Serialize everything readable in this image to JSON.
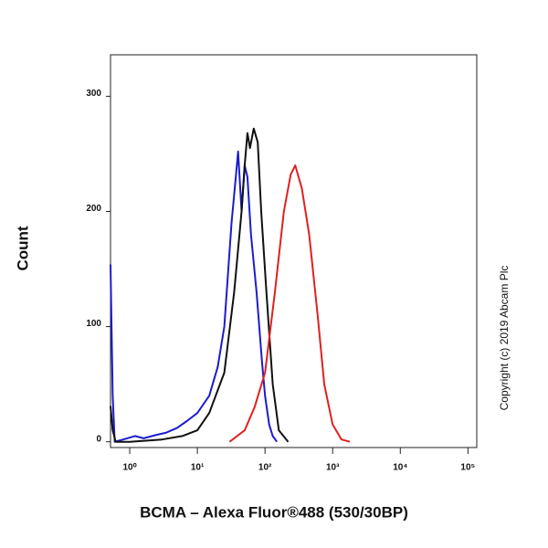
{
  "chart_data": {
    "type": "line",
    "x_label": "BCMA – Alexa Fluor®488 (530/30BP)",
    "y_label": "Count",
    "copyright": "Copyright (c) 2019 Abcam Plc",
    "xscale": "log",
    "xlim": [
      0.52,
      135000
    ],
    "ylim": [
      -5,
      336
    ],
    "xticks": [
      {
        "value": 1,
        "label": "10⁰"
      },
      {
        "value": 10,
        "label": "10¹"
      },
      {
        "value": 100,
        "label": "10²"
      },
      {
        "value": 1000,
        "label": "10³"
      },
      {
        "value": 10000,
        "label": "10⁴"
      },
      {
        "value": 100000,
        "label": "10⁵"
      }
    ],
    "yticks": [
      0,
      100,
      200,
      300
    ],
    "series": [
      {
        "color": "#1c1ccc",
        "x": [
          0.52,
          0.56,
          0.6,
          0.8,
          1.2,
          1.6,
          2.5,
          3.5,
          5,
          7,
          10,
          15,
          20,
          25,
          32,
          37,
          40,
          45,
          50,
          55,
          62,
          75,
          90,
          100,
          115,
          130,
          150
        ],
        "values": [
          154,
          40,
          0,
          2,
          5,
          3,
          6,
          8,
          12,
          18,
          25,
          40,
          65,
          100,
          190,
          230,
          252,
          200,
          240,
          230,
          180,
          130,
          70,
          40,
          15,
          5,
          0
        ]
      },
      {
        "color": "#111111",
        "x": [
          0.52,
          0.56,
          0.62,
          1,
          3,
          6,
          10,
          15,
          25,
          35,
          45,
          50,
          55,
          60,
          68,
          78,
          88,
          105,
          130,
          160,
          220
        ],
        "values": [
          31,
          10,
          0,
          0,
          2,
          5,
          10,
          25,
          60,
          130,
          200,
          240,
          268,
          255,
          272,
          260,
          200,
          130,
          50,
          10,
          0
        ]
      },
      {
        "color": "#e02020",
        "x": [
          30,
          50,
          70,
          100,
          140,
          190,
          240,
          280,
          350,
          450,
          600,
          750,
          1000,
          1350,
          1800
        ],
        "values": [
          0,
          10,
          30,
          60,
          130,
          200,
          232,
          240,
          220,
          180,
          110,
          50,
          15,
          2,
          0
        ]
      }
    ]
  }
}
